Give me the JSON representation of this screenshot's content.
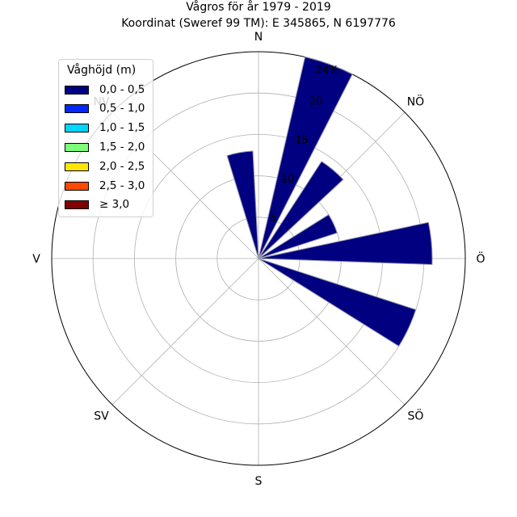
{
  "title_line1": "Vågros för år 1979 - 2019",
  "title_line2": "Koordinat (Sweref 99 TM): E 345865, N 6197776",
  "directions": [
    "N",
    "NÖ",
    "Ö",
    "SÖ",
    "S",
    "SV",
    "V",
    "NV"
  ],
  "radial_ticks": [
    "5",
    "10",
    "15",
    "20",
    "24%"
  ],
  "legend": {
    "title": "Våghöjd (m)",
    "placement": "top-left",
    "items": [
      {
        "label": "0,0 - 0,5",
        "color": "#000080"
      },
      {
        "label": "0,5 - 1,0",
        "color": "#0028ff"
      },
      {
        "label": "1,0 - 1,5",
        "color": "#00d4ff"
      },
      {
        "label": "1,5 - 2,0",
        "color": "#7dff7a"
      },
      {
        "label": "2,0 - 2,5",
        "color": "#ffe600"
      },
      {
        "label": "2,5 - 3,0",
        "color": "#ff4800"
      },
      {
        "label": "≥ 3,0",
        "color": "#800000"
      }
    ]
  },
  "chart_data": {
    "type": "bar",
    "subtype": "wind-rose",
    "radial_unit": "%",
    "rmax": 25,
    "rticks": [
      5,
      10,
      15,
      20,
      24
    ],
    "grid": true,
    "series": [
      {
        "name": "0,0 - 0,5",
        "color": "#000080",
        "bins": [
          {
            "direction_deg": 350,
            "value": 13
          },
          {
            "direction_deg": 20,
            "value": 25
          },
          {
            "direction_deg": 40,
            "value": 14
          },
          {
            "direction_deg": 65,
            "value": 10
          },
          {
            "direction_deg": 85,
            "value": 21
          },
          {
            "direction_deg": 115,
            "value": 20
          }
        ]
      }
    ]
  }
}
